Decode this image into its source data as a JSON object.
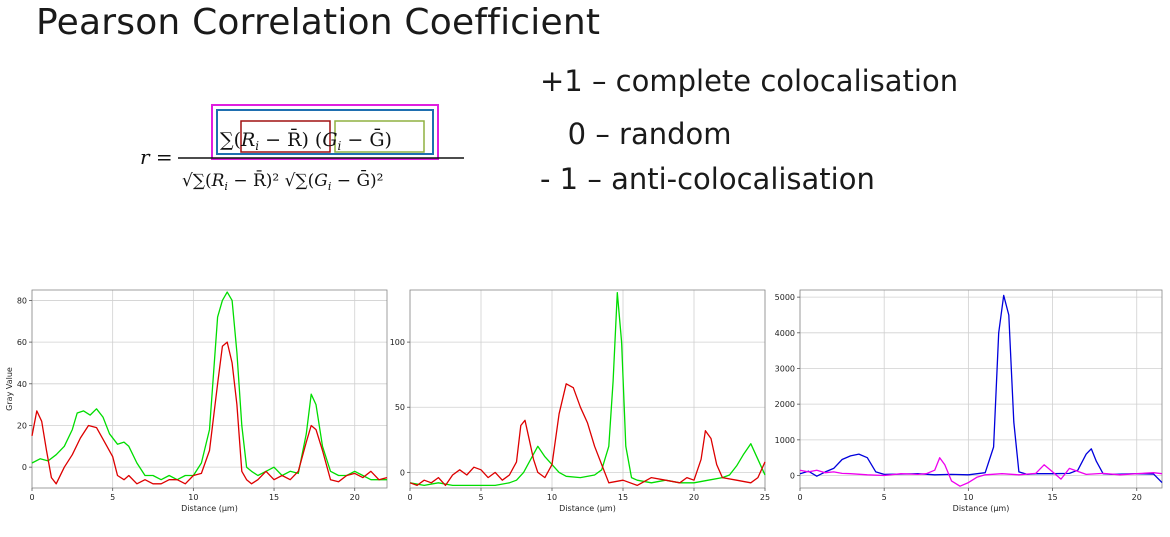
{
  "title": "Pearson Correlation Coefficient",
  "formula": {
    "lhs": "r =",
    "numerator": "∑(R_i − R̄)(G_i − Ḡ)",
    "denominator": "√∑(R_i − R̄)² √∑(G_i − Ḡ)²",
    "box_colors": {
      "outer": "#e01ee0",
      "sum": "#1f6fb0",
      "red_term": "#a01010",
      "green_term": "#8fb040"
    }
  },
  "legend": [
    "+1 – complete colocalisation",
    "   0 – random",
    "- 1 – anti-colocalisation"
  ],
  "chart_data": [
    {
      "type": "line",
      "xlabel": "Distance (µm)",
      "ylabel": "Gray Value",
      "xlim": [
        0,
        22
      ],
      "ylim": [
        -10,
        85
      ],
      "xticks": [
        0,
        5,
        10,
        15,
        20
      ],
      "yticks": [
        0,
        20,
        40,
        60,
        80
      ],
      "grid": true,
      "series": [
        {
          "color": "#00dd00",
          "x": [
            0,
            0.5,
            1,
            1.5,
            2,
            2.5,
            2.8,
            3.2,
            3.6,
            4,
            4.4,
            4.8,
            5.3,
            5.7,
            6,
            6.5,
            7,
            7.5,
            8,
            8.5,
            9,
            9.5,
            10,
            10.5,
            11,
            11.5,
            11.8,
            12.1,
            12.4,
            12.7,
            13,
            13.3,
            13.6,
            14,
            14.5,
            15,
            15.5,
            16,
            16.5,
            17,
            17.3,
            17.6,
            18,
            18.5,
            19,
            19.5,
            20,
            20.5,
            21,
            21.5,
            22
          ],
          "y": [
            2,
            4,
            3,
            6,
            10,
            18,
            26,
            27,
            25,
            28,
            24,
            16,
            11,
            12,
            10,
            2,
            -4,
            -4,
            -6,
            -4,
            -6,
            -4,
            -4,
            2,
            18,
            72,
            80,
            84,
            80,
            55,
            20,
            0,
            -2,
            -4,
            -2,
            0,
            -4,
            -2,
            -3,
            16,
            35,
            30,
            10,
            -2,
            -4,
            -4,
            -2,
            -4,
            -6,
            -6,
            -6
          ]
        },
        {
          "color": "#dd0000",
          "x": [
            0,
            0.3,
            0.6,
            0.9,
            1.2,
            1.5,
            2,
            2.5,
            3,
            3.5,
            4,
            4.5,
            5,
            5.3,
            5.7,
            6,
            6.5,
            7,
            7.5,
            8,
            8.5,
            9,
            9.5,
            10,
            10.5,
            11,
            11.5,
            11.8,
            12.1,
            12.4,
            12.7,
            13,
            13.3,
            13.6,
            14,
            14.5,
            15,
            15.5,
            16,
            16.5,
            17,
            17.3,
            17.6,
            18,
            18.5,
            19,
            19.5,
            20,
            20.5,
            21,
            21.5,
            22
          ],
          "y": [
            15,
            27,
            22,
            8,
            -5,
            -8,
            0,
            6,
            14,
            20,
            19,
            12,
            5,
            -4,
            -6,
            -4,
            -8,
            -6,
            -8,
            -8,
            -6,
            -6,
            -8,
            -4,
            -3,
            8,
            40,
            58,
            60,
            50,
            30,
            -2,
            -6,
            -8,
            -6,
            -2,
            -6,
            -4,
            -6,
            -2,
            12,
            20,
            18,
            8,
            -6,
            -7,
            -4,
            -3,
            -5,
            -2,
            -6,
            -5
          ]
        }
      ]
    },
    {
      "type": "line",
      "xlabel": "Distance (µm)",
      "ylabel": "",
      "xlim": [
        0,
        25
      ],
      "ylim": [
        -12,
        140
      ],
      "xticks": [
        0,
        5,
        10,
        15,
        20,
        25
      ],
      "yticks": [
        0,
        50,
        100
      ],
      "grid": true,
      "series": [
        {
          "color": "#00dd00",
          "x": [
            0,
            1,
            2,
            3,
            4,
            5,
            6,
            7,
            7.5,
            8,
            8.5,
            9,
            9.5,
            10,
            10.5,
            11,
            12,
            13,
            13.5,
            14,
            14.3,
            14.6,
            14.9,
            15.2,
            15.6,
            16,
            17,
            18,
            19,
            20,
            21,
            22,
            22.5,
            23,
            23.5,
            24,
            24.5,
            25
          ],
          "y": [
            -8,
            -10,
            -8,
            -10,
            -10,
            -10,
            -10,
            -8,
            -6,
            0,
            10,
            20,
            12,
            6,
            0,
            -3,
            -4,
            -2,
            2,
            20,
            70,
            138,
            100,
            20,
            -4,
            -6,
            -8,
            -6,
            -8,
            -8,
            -6,
            -4,
            -2,
            5,
            14,
            22,
            10,
            -2
          ]
        },
        {
          "color": "#dd0000",
          "x": [
            0,
            0.5,
            1,
            1.5,
            2,
            2.5,
            3,
            3.5,
            4,
            4.5,
            5,
            5.5,
            6,
            6.5,
            7,
            7.5,
            7.8,
            8.1,
            8.4,
            8.7,
            9,
            9.5,
            10,
            10.5,
            11,
            11.5,
            12,
            12.5,
            13,
            13.5,
            14,
            15,
            16,
            17,
            18,
            19,
            19.5,
            20,
            20.5,
            20.8,
            21.2,
            21.6,
            22,
            23,
            24,
            24.5,
            25
          ],
          "y": [
            -8,
            -10,
            -6,
            -8,
            -4,
            -10,
            -2,
            2,
            -2,
            4,
            2,
            -4,
            0,
            -6,
            -2,
            8,
            36,
            40,
            25,
            10,
            0,
            -4,
            6,
            45,
            68,
            65,
            50,
            38,
            20,
            6,
            -8,
            -6,
            -10,
            -4,
            -6,
            -8,
            -4,
            -6,
            10,
            32,
            26,
            6,
            -4,
            -6,
            -8,
            -4,
            8
          ]
        }
      ]
    },
    {
      "type": "line",
      "xlabel": "Distance (µm)",
      "ylabel": "",
      "xlim": [
        0,
        21.5
      ],
      "ylim": [
        -350,
        5200
      ],
      "xticks": [
        0,
        5,
        10,
        15,
        20
      ],
      "yticks": [
        0,
        1000,
        2000,
        3000,
        4000,
        5000
      ],
      "grid": true,
      "series": [
        {
          "color": "#0000dd",
          "x": [
            0,
            0.5,
            1,
            1.5,
            2,
            2.5,
            3,
            3.5,
            4,
            4.5,
            5,
            6,
            7,
            8,
            9,
            10,
            11,
            11.5,
            11.8,
            12.1,
            12.4,
            12.7,
            13,
            13.5,
            14,
            15,
            16,
            16.5,
            17,
            17.3,
            17.6,
            18,
            18.5,
            19,
            20,
            21,
            21.5
          ],
          "y": [
            50,
            120,
            -20,
            100,
            200,
            450,
            550,
            600,
            500,
            100,
            30,
            40,
            50,
            20,
            30,
            20,
            80,
            800,
            4000,
            5050,
            4500,
            1500,
            100,
            30,
            50,
            50,
            60,
            150,
            600,
            750,
            400,
            50,
            30,
            40,
            50,
            40,
            -200
          ]
        },
        {
          "color": "#ee00ee",
          "x": [
            0,
            0.5,
            1,
            1.5,
            2,
            2.5,
            3,
            4,
            5,
            6,
            7,
            7.5,
            8,
            8.3,
            8.6,
            9,
            9.5,
            10,
            10.5,
            11,
            12,
            13,
            14,
            14.5,
            15,
            15.5,
            16,
            17,
            18,
            19,
            20,
            21,
            21.5
          ],
          "y": [
            150,
            100,
            150,
            80,
            100,
            60,
            50,
            20,
            0,
            50,
            30,
            50,
            150,
            500,
            300,
            -150,
            -300,
            -200,
            -50,
            20,
            50,
            20,
            60,
            300,
            100,
            -100,
            200,
            30,
            60,
            20,
            50,
            80,
            50
          ]
        }
      ]
    }
  ]
}
